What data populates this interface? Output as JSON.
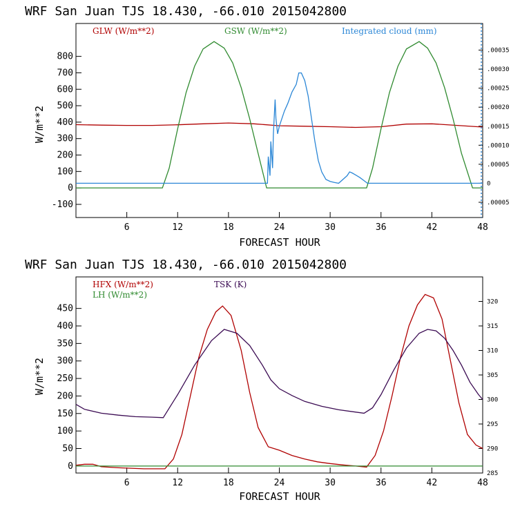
{
  "colors": {
    "red": "#b00000",
    "green": "#2f8a2f",
    "blue": "#2a86d6",
    "purple": "#3a0a52",
    "axis": "#000000"
  },
  "chart_data": [
    {
      "type": "line",
      "title": "WRF  San Juan TJS  18.430, -66.010  2015042800",
      "xlabel": "FORECAST HOUR",
      "ylabel": "W/m**2",
      "xlim": [
        0,
        48
      ],
      "ylim": [
        -180,
        1000
      ],
      "xticks": [
        6,
        12,
        18,
        24,
        30,
        36,
        42,
        48
      ],
      "yticks": [
        -100,
        0,
        100,
        200,
        300,
        400,
        500,
        600,
        700,
        800
      ],
      "y2lim": [
        -9e-05,
        0.00042
      ],
      "y2ticks": [
        -5e-05,
        0,
        5e-05,
        0.0001,
        0.00015,
        0.0002,
        0.00025,
        0.0003,
        0.00035
      ],
      "y2ticklabels": [
        ".00005",
        "0",
        ".00005",
        ".00010",
        ".00015",
        ".00020",
        ".00025",
        ".00030",
        ".00035"
      ],
      "legend": [
        "GLW (W/m**2)",
        "GSW (W/m**2)",
        "Integrated cloud (mm)"
      ],
      "series": [
        {
          "name": "GLW (W/m**2)",
          "axis": "left",
          "color": "#b00000",
          "x": [
            0,
            3,
            6,
            9,
            12,
            15,
            18,
            21,
            24,
            27,
            30,
            33,
            36,
            39,
            42,
            45,
            48
          ],
          "y": [
            385,
            382,
            380,
            380,
            384,
            390,
            395,
            390,
            378,
            375,
            372,
            368,
            372,
            388,
            390,
            380,
            370
          ]
        },
        {
          "name": "GSW (W/m**2)",
          "axis": "left",
          "color": "#2f8a2f",
          "x": [
            0,
            10.2,
            11,
            12,
            13,
            14,
            15,
            16.3,
            17.5,
            18.5,
            19.5,
            20.5,
            21.5,
            22.5,
            24,
            34.3,
            35,
            36,
            37,
            38,
            39,
            40.5,
            41.5,
            42.5,
            43.5,
            44.5,
            45.5,
            46.8,
            48
          ],
          "y": [
            0,
            0,
            120,
            360,
            580,
            740,
            845,
            890,
            850,
            760,
            610,
            420,
            210,
            0,
            0,
            0,
            120,
            360,
            580,
            740,
            845,
            890,
            850,
            760,
            610,
            420,
            210,
            0,
            0
          ]
        },
        {
          "name": "Integrated cloud (mm)",
          "axis": "right",
          "color": "#2a86d6",
          "x": [
            0,
            22.6,
            22.7,
            22.9,
            23.0,
            23.2,
            23.3,
            23.5,
            23.6,
            23.8,
            24.0,
            24.3,
            24.6,
            25.0,
            25.5,
            26.0,
            26.3,
            26.6,
            27.0,
            27.4,
            27.8,
            28.2,
            28.6,
            29.0,
            29.5,
            30.0,
            30.5,
            31.0,
            32.0,
            32.3,
            32.6,
            33.0,
            33.5,
            34.0,
            34.4,
            48
          ],
          "y": [
            0,
            0,
            7e-05,
            2e-05,
            0.00011,
            4e-05,
            0.00013,
            0.00022,
            0.00017,
            0.00013,
            0.00015,
            0.00017,
            0.00019,
            0.00021,
            0.00024,
            0.00026,
            0.00029,
            0.00029,
            0.00027,
            0.00023,
            0.00017,
            0.00011,
            6e-05,
            3e-05,
            1e-05,
            5e-06,
            2e-06,
            0,
            2e-05,
            3e-05,
            2.7e-05,
            2.2e-05,
            1.5e-05,
            7e-06,
            0,
            0
          ]
        }
      ]
    },
    {
      "type": "line",
      "title": "WRF  San Juan TJS  18.430, -66.010  2015042800",
      "xlabel": "FORECAST HOUR",
      "ylabel": "W/m**2",
      "xlim": [
        0,
        48
      ],
      "ylim": [
        -20,
        540
      ],
      "xticks": [
        6,
        12,
        18,
        24,
        30,
        36,
        42,
        48
      ],
      "yticks": [
        0,
        50,
        100,
        150,
        200,
        250,
        300,
        350,
        400,
        450
      ],
      "y2lim": [
        285,
        325
      ],
      "y2ticks": [
        285,
        290,
        295,
        300,
        305,
        310,
        315,
        320
      ],
      "y2ticklabels": [
        "285",
        "290",
        "295",
        "300",
        "305",
        "310",
        "315",
        "320"
      ],
      "legend": [
        "HFX (W/m**2)",
        "LH  (W/m**2)",
        "TSK (K)"
      ],
      "series": [
        {
          "name": "HFX (W/m**2)",
          "axis": "left",
          "color": "#b00000",
          "x": [
            0,
            1,
            2,
            3,
            5,
            8,
            10.5,
            11.5,
            12.5,
            13.5,
            14.5,
            15.5,
            16.5,
            17.3,
            18.3,
            19.5,
            20.5,
            21.5,
            22.7,
            24,
            25.5,
            27,
            28.5,
            30,
            31.5,
            33,
            34.3,
            35.3,
            36.3,
            37.3,
            38.3,
            39.3,
            40.3,
            41.2,
            42.2,
            43.2,
            44.2,
            45.2,
            46.2,
            47.2,
            48
          ],
          "y": [
            2,
            5,
            5,
            -2,
            -5,
            -8,
            -8,
            20,
            90,
            200,
            310,
            390,
            440,
            457,
            430,
            330,
            210,
            110,
            55,
            45,
            30,
            20,
            12,
            7,
            3,
            0,
            -3,
            30,
            100,
            200,
            310,
            400,
            460,
            490,
            480,
            420,
            300,
            180,
            90,
            60,
            50
          ]
        },
        {
          "name": "LH  (W/m**2)",
          "axis": "left",
          "color": "#2f8a2f",
          "x": [
            0,
            48
          ],
          "y": [
            0,
            0
          ]
        },
        {
          "name": "TSK (K)",
          "axis": "right",
          "color": "#3a0a52",
          "x": [
            0,
            1,
            3,
            5,
            7,
            9,
            10.3,
            12,
            14,
            16,
            17.5,
            19,
            20.5,
            22,
            23,
            24,
            25.5,
            27,
            29,
            31,
            34,
            35,
            36,
            37.5,
            39,
            40.5,
            41.5,
            42.5,
            43.5,
            44.5,
            45.5,
            46.5,
            47.5,
            48
          ],
          "y": [
            299,
            298,
            297.2,
            296.8,
            296.5,
            296.4,
            296.3,
            301,
            307,
            312,
            314.3,
            313.5,
            311,
            307,
            304,
            302.2,
            300.8,
            299.6,
            298.6,
            297.9,
            297.2,
            298.3,
            301,
            306,
            310.5,
            313.5,
            314.3,
            314,
            312.5,
            310,
            307,
            303.5,
            301,
            300
          ]
        }
      ]
    }
  ]
}
